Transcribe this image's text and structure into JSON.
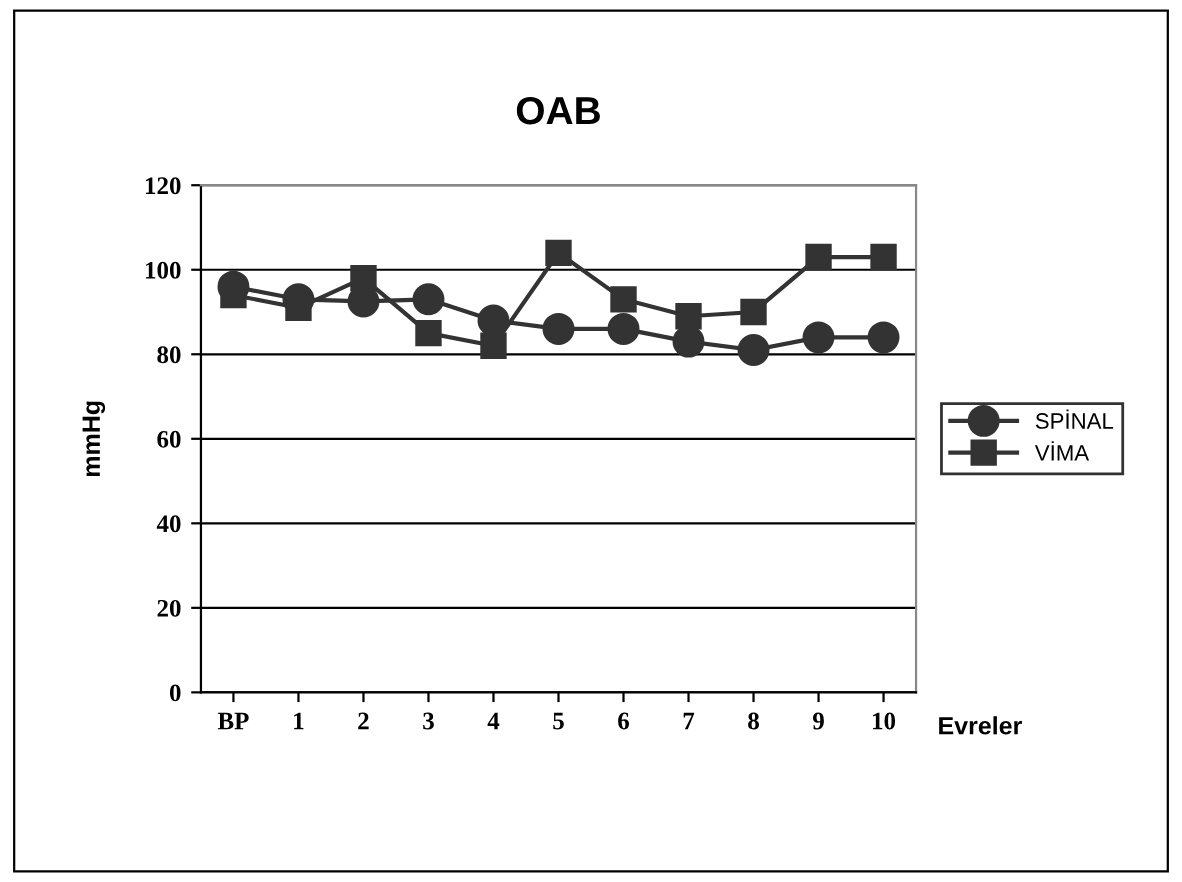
{
  "chart_data": {
    "type": "line",
    "title": "OAB",
    "ylabel": "mmHg",
    "xlabel": "Evreler",
    "categories": [
      "BP",
      "1",
      "2",
      "3",
      "4",
      "5",
      "6",
      "7",
      "8",
      "9",
      "10"
    ],
    "series": [
      {
        "name": "SPİNAL",
        "color": "#333333",
        "marker": "circle",
        "values": [
          96,
          93,
          92.5,
          93,
          88,
          86,
          86,
          83,
          81,
          84,
          84
        ]
      },
      {
        "name": "VİMA",
        "color": "#333333",
        "marker": "square",
        "values": [
          94,
          91,
          98,
          85,
          82,
          104,
          93,
          89,
          90,
          103,
          103
        ]
      }
    ],
    "ylim": [
      0,
      120
    ],
    "yticks": [
      0,
      20,
      40,
      60,
      80,
      100,
      120
    ],
    "grid": "y",
    "legend": "right",
    "line_style": "solid"
  }
}
